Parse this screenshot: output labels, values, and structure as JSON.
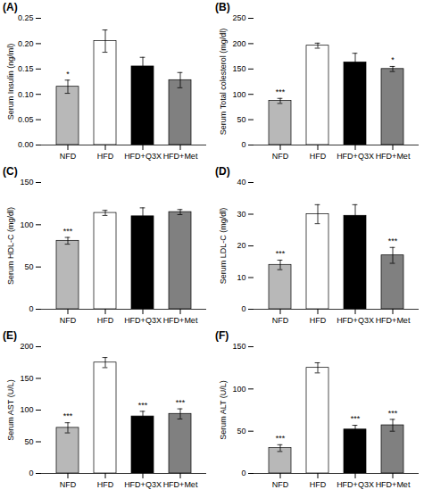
{
  "chart_data": [
    {
      "type": "bar",
      "title": "(A)",
      "ylabel": "Serum Insulin (ng/ml)",
      "categories": [
        "NFD",
        "HFD",
        "HFD+Q3X",
        "HFD+Met"
      ],
      "values": [
        0.115,
        0.205,
        0.155,
        0.128
      ],
      "errors": [
        0.013,
        0.022,
        0.018,
        0.015
      ],
      "colors": [
        "#b8b8b8",
        "#ffffff",
        "#000000",
        "#808080"
      ],
      "ylim": [
        0,
        0.25
      ],
      "yticks": [
        {
          "value": 0,
          "label": "0.00"
        },
        0.05,
        {
          "value": 0.1,
          "label": "0.10"
        },
        0.15,
        {
          "value": 0.2,
          "label": "0.20"
        },
        0.25
      ],
      "annotations": [
        {
          "x": "NFD",
          "text": "*"
        }
      ],
      "grid": false
    },
    {
      "type": "bar",
      "title": "(B)",
      "ylabel": "Serum Total colesterol (mg/dl)",
      "categories": [
        "NFD",
        "HFD",
        "HFD+Q3X",
        "HFD+Met"
      ],
      "values": [
        87,
        196,
        163,
        150
      ],
      "errors": [
        5,
        5,
        18,
        5
      ],
      "colors": [
        "#b8b8b8",
        "#ffffff",
        "#000000",
        "#808080"
      ],
      "ylim": [
        0,
        250
      ],
      "yticks": [
        0,
        50,
        100,
        150,
        200,
        250
      ],
      "annotations": [
        {
          "x": "NFD",
          "text": "***"
        },
        {
          "x": "HFD+Met",
          "text": "*"
        }
      ],
      "grid": false
    },
    {
      "type": "bar",
      "title": "(C)",
      "ylabel": "Serum HDL-C (mg/dl)",
      "categories": [
        "NFD",
        "HFD",
        "HFD+Q3X",
        "HFD+Met"
      ],
      "values": [
        81,
        114,
        110,
        115
      ],
      "errors": [
        4,
        3,
        10,
        3
      ],
      "colors": [
        "#b8b8b8",
        "#ffffff",
        "#000000",
        "#808080"
      ],
      "ylim": [
        0,
        150
      ],
      "yticks": [
        0,
        50,
        100,
        150
      ],
      "annotations": [
        {
          "x": "NFD",
          "text": "***"
        }
      ],
      "grid": false
    },
    {
      "type": "bar",
      "title": "(D)",
      "ylabel": "Serum LDL-C (mg/dl)",
      "categories": [
        "NFD",
        "HFD",
        "HFD+Q3X",
        "HFD+Met"
      ],
      "values": [
        14,
        30,
        29.5,
        17
      ],
      "errors": [
        1.5,
        3,
        3.5,
        2.5
      ],
      "colors": [
        "#b8b8b8",
        "#ffffff",
        "#000000",
        "#808080"
      ],
      "ylim": [
        0,
        40
      ],
      "yticks": [
        0,
        10,
        20,
        30,
        40
      ],
      "annotations": [
        {
          "x": "NFD",
          "text": "***"
        },
        {
          "x": "HFD+Met",
          "text": "***"
        }
      ],
      "grid": false
    },
    {
      "type": "bar",
      "title": "(E)",
      "ylabel": "Serum AST (U/L)",
      "categories": [
        "NFD",
        "HFD",
        "HFD+Q3X",
        "HFD+Met"
      ],
      "values": [
        72,
        175,
        90,
        94
      ],
      "errors": [
        8,
        8,
        8,
        8
      ],
      "colors": [
        "#b8b8b8",
        "#ffffff",
        "#000000",
        "#808080"
      ],
      "ylim": [
        0,
        200
      ],
      "yticks": [
        0,
        50,
        100,
        150,
        200
      ],
      "annotations": [
        {
          "x": "NFD",
          "text": "***"
        },
        {
          "x": "HFD+Q3X",
          "text": "***"
        },
        {
          "x": "HFD+Met",
          "text": "***"
        }
      ],
      "grid": false
    },
    {
      "type": "bar",
      "title": "(F)",
      "ylabel": "Serum ALT (U/L)",
      "categories": [
        "NFD",
        "HFD",
        "HFD+Q3X",
        "HFD+Met"
      ],
      "values": [
        30,
        125,
        52,
        57
      ],
      "errors": [
        4,
        6,
        5,
        7
      ],
      "colors": [
        "#b8b8b8",
        "#ffffff",
        "#000000",
        "#808080"
      ],
      "ylim": [
        0,
        150
      ],
      "yticks": [
        0,
        50,
        100,
        150
      ],
      "annotations": [
        {
          "x": "NFD",
          "text": "***"
        },
        {
          "x": "HFD+Q3X",
          "text": "***"
        },
        {
          "x": "HFD+Met",
          "text": "***"
        }
      ],
      "grid": false
    }
  ]
}
